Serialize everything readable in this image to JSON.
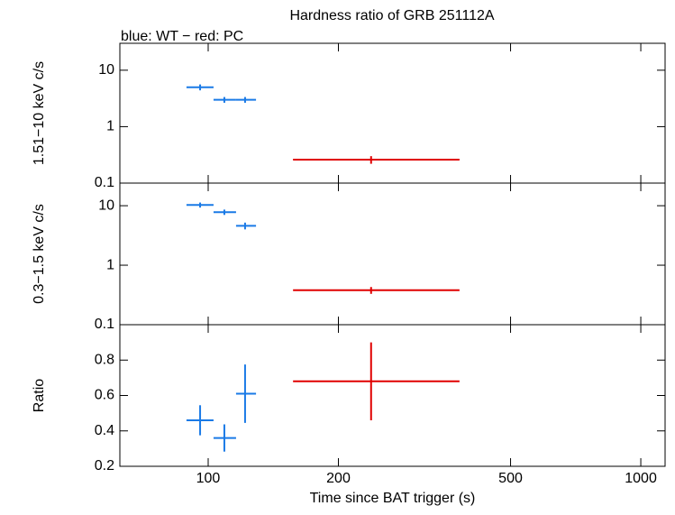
{
  "chart_data": [
    {
      "type": "errorbar",
      "title": "Hardness ratio of GRB 251112A",
      "subtitle": "blue: WT − red: PC",
      "y_label": "1.51−10 keV c/s",
      "x_log": true,
      "y_log": true,
      "xlim": [
        62.5,
        1138
      ],
      "ylim": [
        0.1,
        30
      ],
      "yticks": [
        0.1,
        1,
        10
      ],
      "series": [
        {
          "name": "WT",
          "color": "#1a7ae6",
          "x": [
            95.8,
            109,
            121.7
          ],
          "x_low": [
            89.1,
            102.9,
            116
          ],
          "x_high": [
            102.9,
            116,
            129
          ],
          "values": [
            5.0,
            3.0,
            3.0
          ],
          "yerr": [
            0.6,
            0.35,
            0.35
          ]
        },
        {
          "name": "PC",
          "color": "#e00000",
          "x": [
            238
          ],
          "x_low": [
            157.1
          ],
          "x_high": [
            381
          ],
          "values": [
            0.26
          ],
          "yerr": [
            0.04
          ]
        }
      ]
    },
    {
      "type": "errorbar",
      "y_label": "0.3−1.5 keV c/s",
      "x_log": true,
      "y_log": true,
      "xlim": [
        62.5,
        1138
      ],
      "ylim": [
        0.1,
        24
      ],
      "yticks": [
        0.1,
        1,
        10
      ],
      "series": [
        {
          "name": "WT",
          "color": "#1a7ae6",
          "x": [
            95.8,
            109,
            121.7
          ],
          "x_low": [
            89.1,
            102.9,
            116
          ],
          "x_high": [
            102.9,
            116,
            129
          ],
          "values": [
            10.3,
            7.8,
            4.6
          ],
          "yerr": [
            1.0,
            0.8,
            0.6
          ]
        },
        {
          "name": "PC",
          "color": "#e00000",
          "x": [
            238
          ],
          "x_low": [
            157.1
          ],
          "x_high": [
            381
          ],
          "values": [
            0.38
          ],
          "yerr": [
            0.05
          ]
        }
      ]
    },
    {
      "type": "errorbar",
      "y_label": "Ratio",
      "x_label": "Time since BAT trigger (s)",
      "x_log": true,
      "y_log": false,
      "xlim": [
        62.5,
        1138
      ],
      "ylim": [
        0.2,
        1.0
      ],
      "yticks": [
        0.2,
        0.4,
        0.6,
        0.8
      ],
      "xticks": [
        100,
        200,
        500,
        1000
      ],
      "series": [
        {
          "name": "WT",
          "color": "#1a7ae6",
          "x": [
            95.8,
            109,
            121.7
          ],
          "x_low": [
            89.1,
            102.9,
            116
          ],
          "x_high": [
            102.9,
            116,
            129
          ],
          "values": [
            0.46,
            0.36,
            0.61
          ],
          "yerr": [
            0.085,
            0.077,
            0.165
          ]
        },
        {
          "name": "PC",
          "color": "#e00000",
          "x": [
            238
          ],
          "x_low": [
            157.1
          ],
          "x_high": [
            381
          ],
          "values": [
            0.68
          ],
          "yerr": [
            0.22
          ]
        }
      ]
    }
  ]
}
